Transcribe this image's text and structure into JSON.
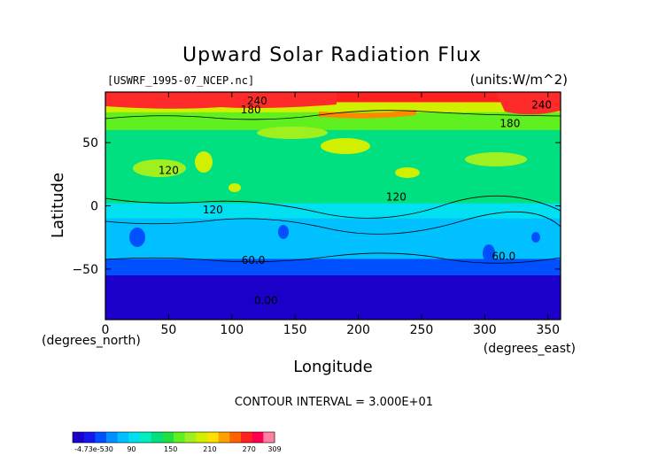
{
  "chart_data": {
    "type": "heatmap",
    "title": "Upward Solar Radiation Flux",
    "file_label": "[USWRF_1995-07_NCEP.nc]",
    "units_label": "(units:W/m^2)",
    "xlabel": "Longitude",
    "ylabel": "Latitude",
    "x_unit_label": "(degrees_east)",
    "y_unit_label": "(degrees_north)",
    "xlim": [
      0,
      360
    ],
    "ylim": [
      -90,
      90
    ],
    "x_ticks": [
      0,
      50,
      100,
      150,
      200,
      250,
      300,
      350
    ],
    "y_ticks": [
      50,
      0,
      -50
    ],
    "x_tick_labels": [
      "0",
      "50",
      "100",
      "150",
      "200",
      "250",
      "300",
      "350"
    ],
    "y_tick_labels": [
      "50",
      "0",
      "−50"
    ],
    "contour_interval_text": "CONTOUR INTERVAL = 3.000E+01",
    "contour_labels": [
      {
        "text": "240",
        "lon": 120,
        "lat": 83
      },
      {
        "text": "180",
        "lon": 115,
        "lat": 76
      },
      {
        "text": "240",
        "lon": 345,
        "lat": 80
      },
      {
        "text": "180",
        "lon": 320,
        "lat": 65
      },
      {
        "text": "120",
        "lon": 50,
        "lat": 28
      },
      {
        "text": "120",
        "lon": 230,
        "lat": 7
      },
      {
        "text": "120",
        "lon": 85,
        "lat": -3
      },
      {
        "text": "60.0",
        "lon": 117,
        "lat": -43
      },
      {
        "text": "60.0",
        "lon": 315,
        "lat": -40
      },
      {
        "text": "0.00",
        "lon": 127,
        "lat": -75
      }
    ],
    "lat_bands": [
      {
        "lat_top": 90,
        "lat_bottom": 82,
        "value": 270
      },
      {
        "lat_top": 82,
        "lat_bottom": 74,
        "value": 195
      },
      {
        "lat_top": 74,
        "lat_bottom": 60,
        "value": 165
      },
      {
        "lat_top": 60,
        "lat_bottom": 25,
        "value": 135
      },
      {
        "lat_top": 25,
        "lat_bottom": 2,
        "value": 125
      },
      {
        "lat_top": 2,
        "lat_bottom": -10,
        "value": 95
      },
      {
        "lat_top": -10,
        "lat_bottom": -42,
        "value": 75
      },
      {
        "lat_top": -42,
        "lat_bottom": -55,
        "value": 45
      },
      {
        "lat_top": -55,
        "lat_bottom": -74,
        "value": 15
      },
      {
        "lat_top": -74,
        "lat_bottom": -90,
        "value": 0
      }
    ],
    "colorbar": {
      "min_label": "-4.73e-530",
      "tick_labels": [
        "90",
        "150",
        "210",
        "270"
      ],
      "tick_values": [
        90,
        150,
        210,
        270
      ],
      "max_label": "309",
      "min_value": 0,
      "max_value": 309,
      "colors": [
        "#1a00c8",
        "#1616f0",
        "#0050ff",
        "#0090ff",
        "#00c0ff",
        "#00e0f0",
        "#00f0c0",
        "#00e080",
        "#20e040",
        "#60f020",
        "#a0f020",
        "#d0f000",
        "#ffe000",
        "#ffa000",
        "#ff6000",
        "#ff2020",
        "#ff0050",
        "#ff80a0"
      ]
    }
  }
}
